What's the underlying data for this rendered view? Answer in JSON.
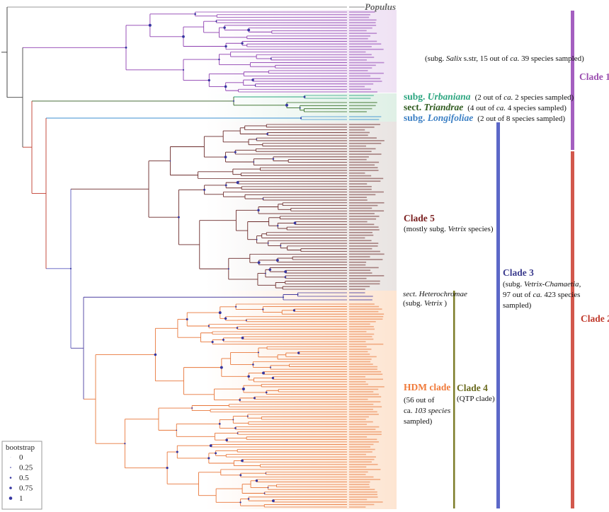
{
  "labels": {
    "populus": [
      [
        "Populus"
      ]
    ],
    "clade_1": [
      [
        "Clade 1"
      ]
    ],
    "clade_1_note": [
      [
        "(subg. ",
        "Salix",
        " s.str, 15 out of ",
        "ca.",
        " 39 species sampled)"
      ]
    ],
    "urbaniana": [
      [
        "subg. ",
        "Urbaniana"
      ]
    ],
    "urbaniana_note": [
      [
        "(2 out of ",
        "ca.",
        " 2 species sampled)"
      ]
    ],
    "triandrae": [
      [
        "sect. ",
        "Triandrae"
      ]
    ],
    "triandrae_note": [
      [
        "(4 out of ",
        "ca.",
        " 4 species sampled)"
      ]
    ],
    "longifoliae": [
      [
        "subg. ",
        "Longifoliae"
      ]
    ],
    "longifoliae_note": [
      [
        "(2 out of 8 species sampled)"
      ]
    ],
    "clade_5": [
      [
        "Clade 5"
      ]
    ],
    "clade_5_note": [
      [
        "(mostly subg. ",
        "Vetrix",
        " species)"
      ]
    ],
    "heterochromae": [
      [
        "sect. Heterochromae"
      ]
    ],
    "heterochromae_note": [
      [
        "(subg. ",
        "Vetrix",
        " )"
      ]
    ],
    "hdm": [
      [
        "HDM clade"
      ]
    ],
    "hdm_note": [
      [
        "(56 out of"
      ],
      [
        "ca.",
        " 103 species"
      ],
      [
        "sampled)"
      ]
    ],
    "clade_4": [
      [
        "Clade 4"
      ]
    ],
    "clade_4_note": [
      [
        "(QTP clade)"
      ]
    ],
    "clade_3": [
      [
        "Clade 3"
      ]
    ],
    "clade_3_note": [
      [
        "(subg. ",
        "Vetrix-Chamaetia",
        ","
      ],
      [
        "97 out of ",
        "ca.",
        " 423 species"
      ],
      [
        "sampled)"
      ]
    ],
    "clade_2": [
      [
        "Clade 2"
      ]
    ]
  },
  "legend": {
    "title": "bootstrap",
    "items": [
      0,
      0.25,
      0.5,
      0.75,
      1
    ]
  }
}
